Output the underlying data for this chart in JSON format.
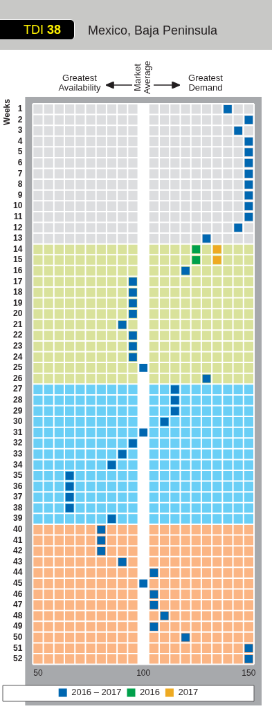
{
  "chart_data": {
    "type": "scatter",
    "title": "Mexico, Baja Peninsula",
    "ylabel": "Weeks",
    "orientation": "horizontal",
    "annotations": [
      "TDI 38",
      "Greatest Availability",
      "Greatest Demand"
    ],
    "categories": [
      "1",
      "2",
      "3",
      "4",
      "5",
      "6",
      "7",
      "8",
      "9",
      "10",
      "11",
      "12",
      "13",
      "14",
      "15",
      "16",
      "17",
      "18",
      "19",
      "20",
      "21",
      "22",
      "23",
      "24",
      "25",
      "26",
      "27",
      "28",
      "29",
      "30",
      "31",
      "32",
      "33",
      "34",
      "35",
      "36",
      "37",
      "38",
      "39",
      "40",
      "41",
      "42",
      "43",
      "44",
      "45",
      "46",
      "47",
      "48",
      "49",
      "50",
      "51",
      "52"
    ],
    "series": [
      {
        "name": "2016 – 2017",
        "color": "#0067b1",
        "values": [
          140,
          150,
          145,
          150,
          150,
          150,
          150,
          150,
          150,
          150,
          150,
          145,
          130,
          null,
          null,
          120,
          95,
          95,
          95,
          95,
          90,
          95,
          95,
          95,
          100,
          130,
          115,
          115,
          115,
          110,
          100,
          95,
          90,
          85,
          65,
          65,
          65,
          65,
          85,
          80,
          80,
          80,
          90,
          105,
          100,
          105,
          105,
          110,
          105,
          120,
          150,
          150
        ]
      },
      {
        "name": "2016",
        "color": "#00a04b",
        "values": [
          null,
          null,
          null,
          null,
          null,
          null,
          null,
          null,
          null,
          null,
          null,
          null,
          null,
          125,
          125,
          null,
          null,
          null,
          null,
          null,
          null,
          null,
          null,
          null,
          null,
          null,
          null,
          null,
          null,
          null,
          null,
          null,
          null,
          null,
          null,
          null,
          null,
          null,
          null,
          null,
          null,
          null,
          null,
          null,
          null,
          null,
          null,
          null,
          null,
          null,
          null,
          null
        ]
      },
      {
        "name": "2017",
        "color": "#eeaa22",
        "values": [
          null,
          null,
          null,
          null,
          null,
          null,
          null,
          null,
          null,
          null,
          null,
          null,
          null,
          135,
          135,
          null,
          null,
          null,
          null,
          null,
          null,
          null,
          null,
          null,
          null,
          null,
          null,
          null,
          null,
          null,
          null,
          null,
          null,
          null,
          null,
          null,
          null,
          null,
          null,
          null,
          null,
          null,
          null,
          null,
          null,
          null,
          null,
          null,
          null,
          null,
          null,
          null
        ]
      }
    ],
    "xlim": [
      47.5,
      152.5
    ],
    "xticks": [
      50,
      100,
      150
    ],
    "bands": [
      {
        "axis": "y",
        "from": "1",
        "to": "13",
        "color": "#dcdddf"
      },
      {
        "axis": "y",
        "from": "14",
        "to": "26",
        "color": "#d9e29b"
      },
      {
        "axis": "y",
        "from": "27",
        "to": "39",
        "color": "#6acff6"
      },
      {
        "axis": "y",
        "from": "40",
        "to": "52",
        "color": "#fbb584"
      },
      {
        "axis": "x",
        "from": 97.5,
        "to": 102.5,
        "label": "Market Average",
        "color": "#ffffff"
      }
    ],
    "marker": "square",
    "legend": "bottom"
  }
}
